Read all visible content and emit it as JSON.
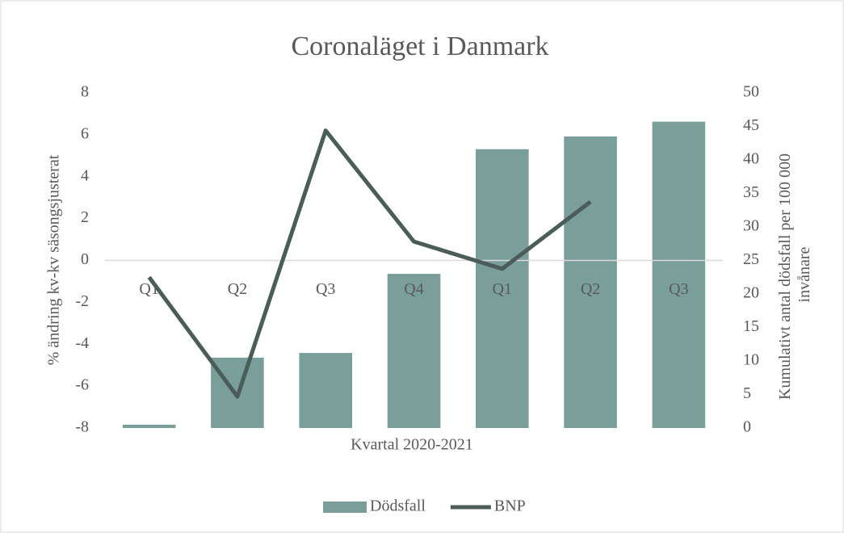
{
  "chart_data": {
    "type": "combo",
    "title": "Coronaläget i Danmark",
    "x_label": "Kvartal 2020-2021",
    "y_label": "% ändring kv-kv säsongsjusterat",
    "y2_label": "Kumulativt antal dödsfall per 100 000 invånare",
    "categories": [
      "Q1",
      "Q2",
      "Q3",
      "Q4",
      "Q1",
      "Q2",
      "Q3"
    ],
    "series": [
      {
        "name": "Dödsfall",
        "type": "bar",
        "axis": "y2",
        "color": "#7a9e9a",
        "values": [
          0.5,
          10.5,
          11.2,
          23.0,
          41.6,
          43.5,
          45.7
        ]
      },
      {
        "name": "BNP",
        "type": "line",
        "axis": "y",
        "color": "#4a5d58",
        "values": [
          -0.8,
          -6.5,
          6.2,
          0.9,
          -0.4,
          2.8,
          null
        ]
      }
    ],
    "ylim": [
      -8,
      8
    ],
    "yticks": [
      -8,
      -6,
      -4,
      -2,
      0,
      2,
      4,
      6,
      8
    ],
    "y2lim": [
      0,
      50
    ],
    "y2ticks": [
      0,
      5,
      10,
      15,
      20,
      25,
      30,
      35,
      40,
      45,
      50
    ],
    "grid": false,
    "legend": "bottom"
  }
}
